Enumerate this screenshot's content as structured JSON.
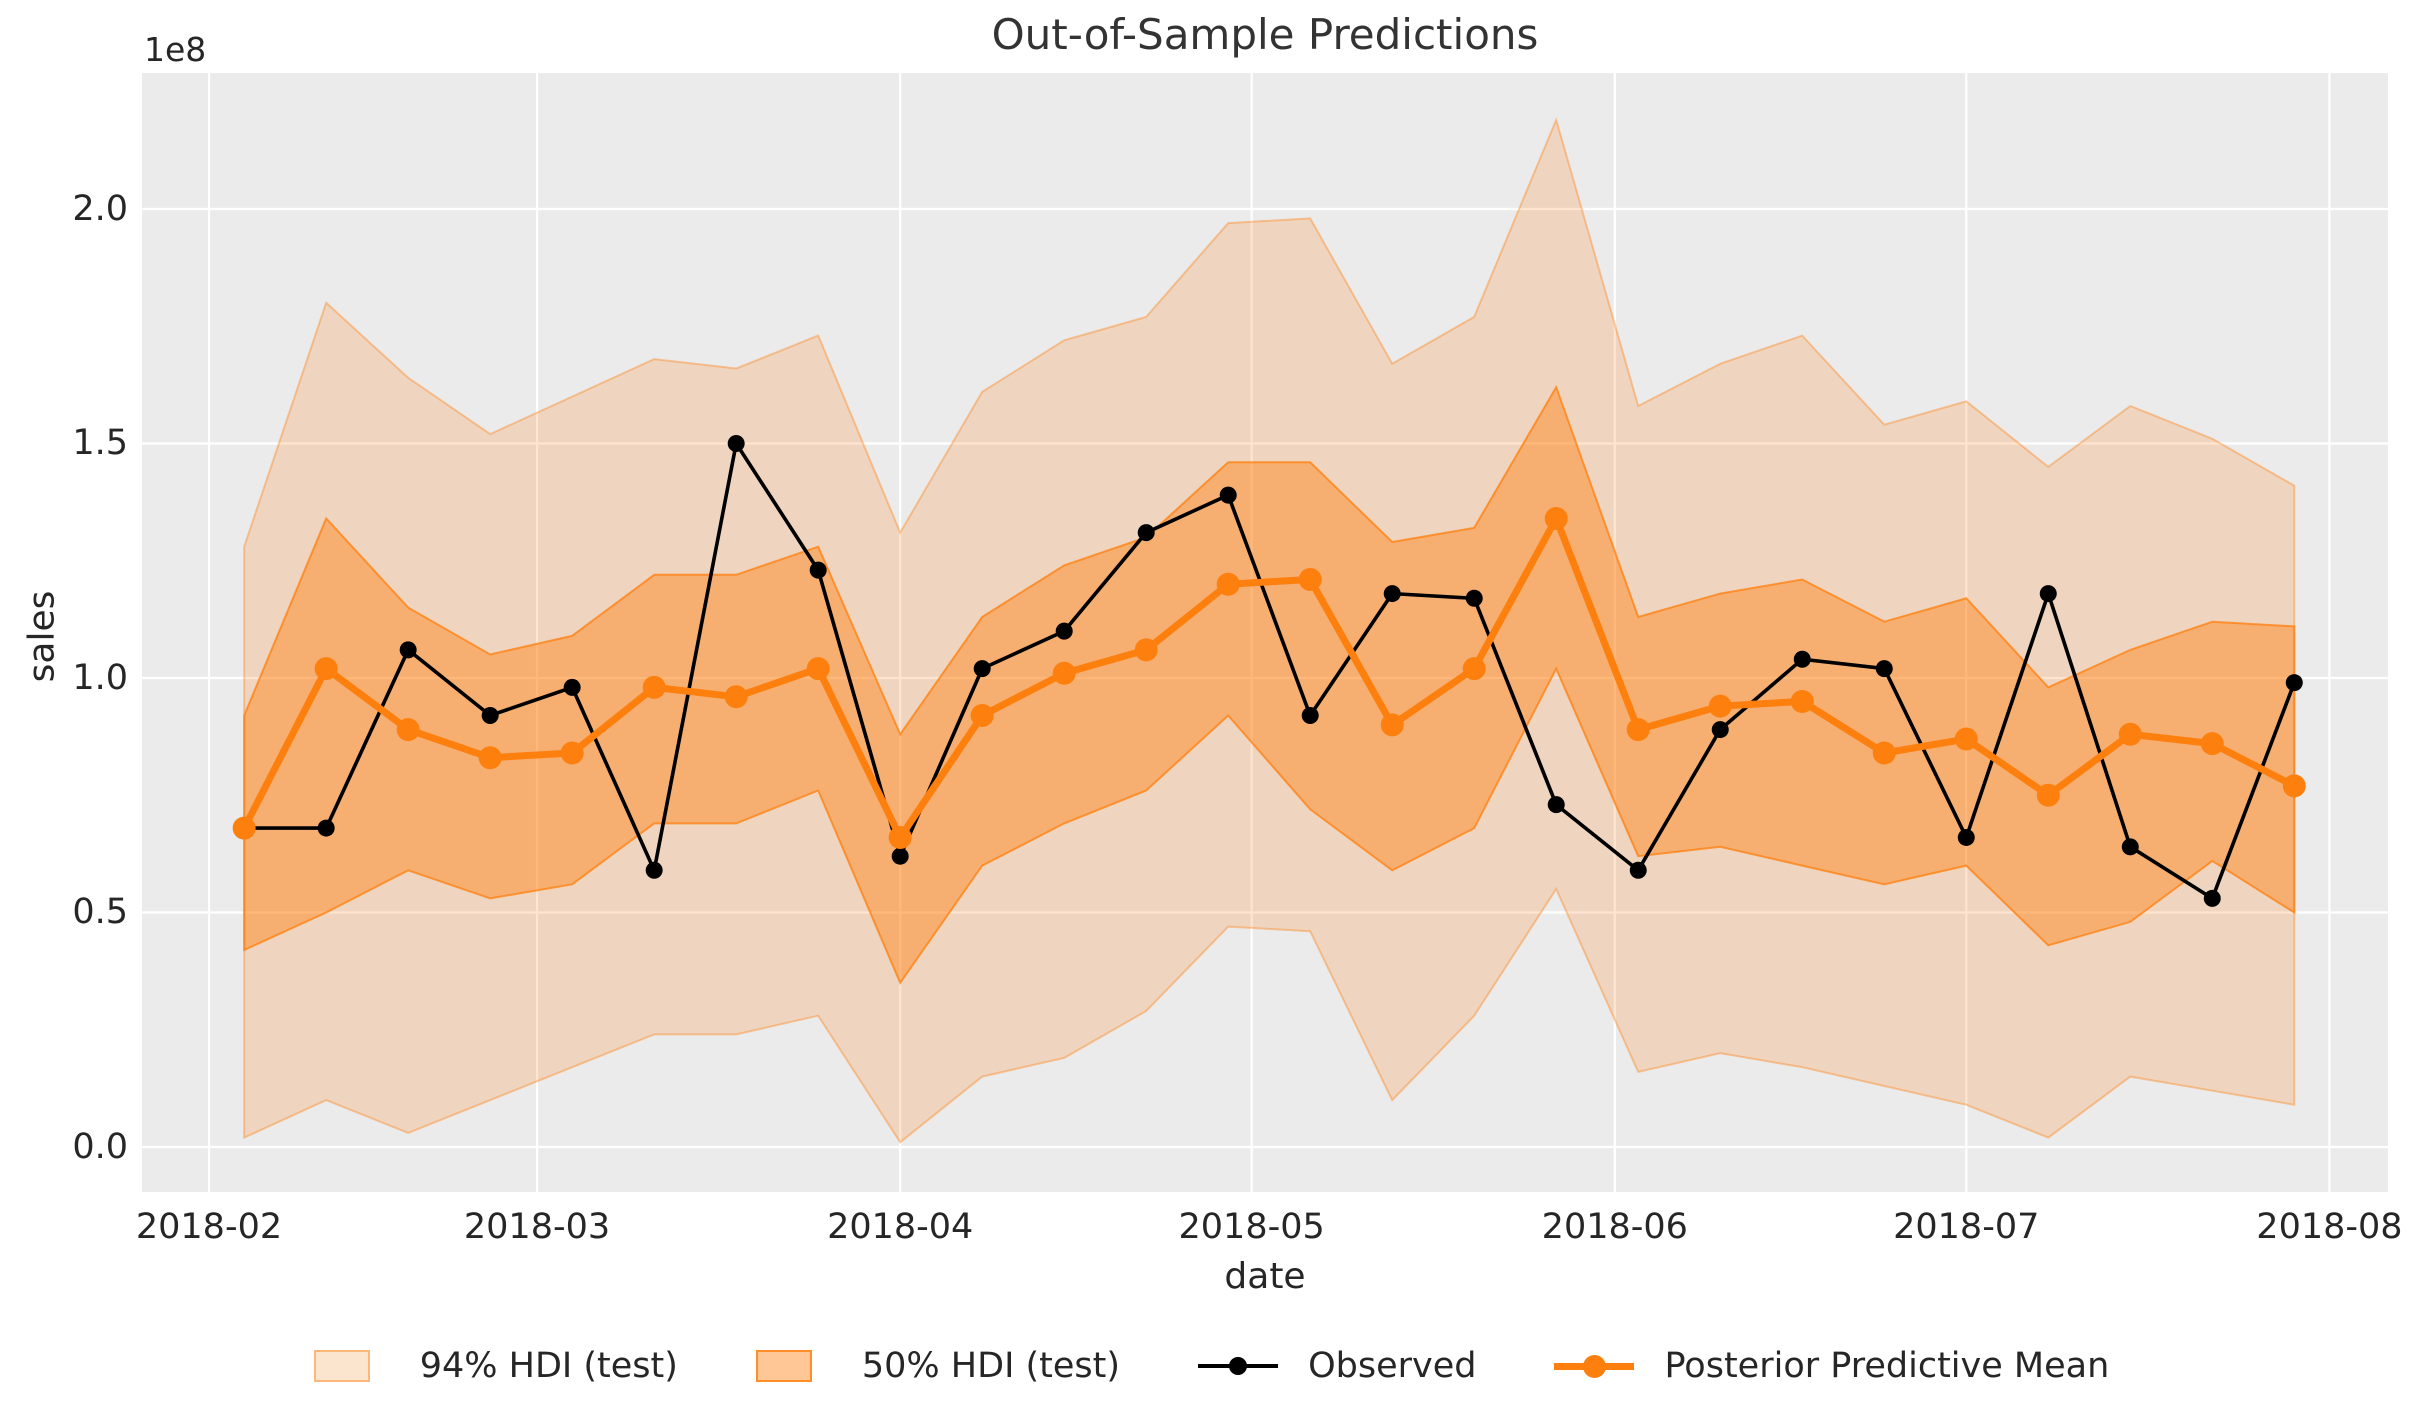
{
  "chart_data": {
    "type": "line",
    "title": "Out-of-Sample Predictions",
    "xlabel": "date",
    "ylabel": "sales",
    "y_offset_text": "1e8",
    "value_unit": "1e8",
    "grid": true,
    "legend_position": "bottom-center",
    "xlim_days_from_first_point": [
      -8.72,
      183.0
    ],
    "ylim": [
      -0.096,
      2.29
    ],
    "x_ticks": [
      {
        "label": "2018-02",
        "day": -3
      },
      {
        "label": "2018-03",
        "day": 25
      },
      {
        "label": "2018-04",
        "day": 56
      },
      {
        "label": "2018-05",
        "day": 86
      },
      {
        "label": "2018-06",
        "day": 117
      },
      {
        "label": "2018-07",
        "day": 147
      },
      {
        "label": "2018-08",
        "day": 178
      }
    ],
    "y_ticks": [
      {
        "label": "0.0",
        "value": 0.0
      },
      {
        "label": "0.5",
        "value": 0.5
      },
      {
        "label": "1.0",
        "value": 1.0
      },
      {
        "label": "1.5",
        "value": 1.5
      },
      {
        "label": "2.0",
        "value": 2.0
      }
    ],
    "dates": [
      "2018-02-04",
      "2018-02-11",
      "2018-02-18",
      "2018-02-25",
      "2018-03-04",
      "2018-03-11",
      "2018-03-18",
      "2018-03-25",
      "2018-04-01",
      "2018-04-08",
      "2018-04-15",
      "2018-04-22",
      "2018-04-29",
      "2018-05-06",
      "2018-05-13",
      "2018-05-20",
      "2018-05-27",
      "2018-06-03",
      "2018-06-10",
      "2018-06-17",
      "2018-06-24",
      "2018-07-01",
      "2018-07-08",
      "2018-07-15",
      "2018-07-22",
      "2018-07-29"
    ],
    "series": [
      {
        "name": "Observed",
        "values": [
          0.68,
          0.68,
          1.06,
          0.92,
          0.98,
          0.59,
          1.5,
          1.23,
          0.62,
          1.02,
          1.1,
          1.31,
          1.39,
          0.92,
          1.18,
          1.17,
          0.73,
          0.59,
          0.89,
          1.04,
          1.02,
          0.66,
          1.18,
          0.64,
          0.53,
          0.99
        ]
      },
      {
        "name": "Posterior Predictive Mean",
        "values": [
          0.68,
          1.02,
          0.89,
          0.83,
          0.84,
          0.98,
          0.96,
          1.02,
          0.66,
          0.92,
          1.01,
          1.06,
          1.2,
          1.21,
          0.9,
          1.02,
          1.34,
          0.89,
          0.94,
          0.95,
          0.84,
          0.87,
          0.75,
          0.88,
          0.86,
          0.77
        ]
      },
      {
        "name": "94% HDI (test) upper",
        "values": [
          1.28,
          1.8,
          1.64,
          1.52,
          1.6,
          1.68,
          1.66,
          1.73,
          1.31,
          1.61,
          1.72,
          1.77,
          1.97,
          1.98,
          1.67,
          1.77,
          2.19,
          1.58,
          1.67,
          1.73,
          1.54,
          1.59,
          1.45,
          1.58,
          1.51,
          1.41
        ]
      },
      {
        "name": "94% HDI (test) lower",
        "values": [
          0.02,
          0.1,
          0.03,
          0.1,
          0.17,
          0.24,
          0.24,
          0.28,
          0.01,
          0.15,
          0.19,
          0.29,
          0.47,
          0.46,
          0.1,
          0.28,
          0.55,
          0.16,
          0.2,
          0.17,
          0.13,
          0.09,
          0.02,
          0.15,
          0.12,
          0.09
        ]
      },
      {
        "name": "50% HDI (test) upper",
        "values": [
          0.92,
          1.34,
          1.15,
          1.05,
          1.09,
          1.22,
          1.22,
          1.28,
          0.88,
          1.13,
          1.24,
          1.3,
          1.46,
          1.46,
          1.29,
          1.32,
          1.62,
          1.13,
          1.18,
          1.21,
          1.12,
          1.17,
          0.98,
          1.06,
          1.12,
          1.11
        ]
      },
      {
        "name": "50% HDI (test) lower",
        "values": [
          0.42,
          0.5,
          0.59,
          0.53,
          0.56,
          0.69,
          0.69,
          0.76,
          0.35,
          0.6,
          0.69,
          0.76,
          0.92,
          0.72,
          0.59,
          0.68,
          1.02,
          0.62,
          0.64,
          0.6,
          0.56,
          0.6,
          0.43,
          0.48,
          0.61,
          0.5
        ]
      }
    ],
    "legend": [
      {
        "label": "94% HDI (test)",
        "type": "patch"
      },
      {
        "label": "50% HDI (test)",
        "type": "patch"
      },
      {
        "label": "Observed",
        "type": "line-marker"
      },
      {
        "label": "Posterior Predictive Mean",
        "type": "line-marker"
      }
    ],
    "colors": {
      "plot_background": "#ebebeb",
      "grid": "#ffffff",
      "hdi_base": "#ff7f0e",
      "hdi_94_fill_alpha": 0.2,
      "hdi_50_fill_alpha": 0.44,
      "observed_line": "#000000",
      "mean_line": "#fd7f0e",
      "text": "#262626"
    }
  }
}
